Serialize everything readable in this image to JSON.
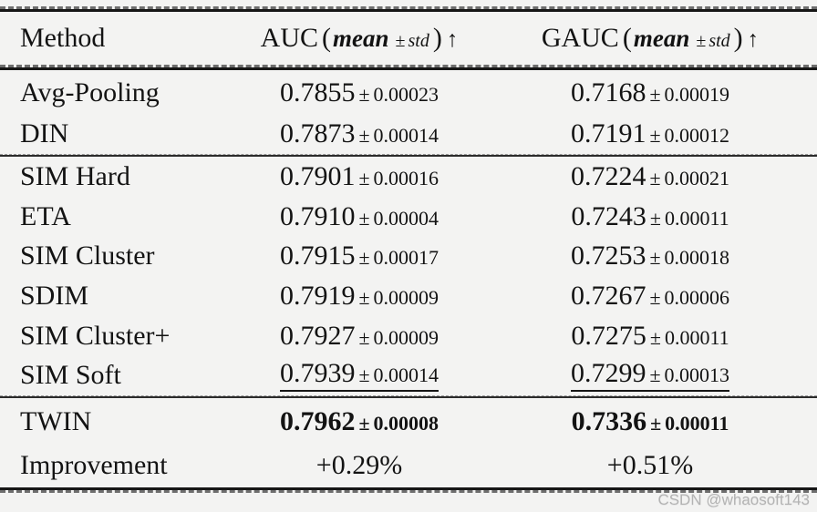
{
  "page": {
    "background": "#f3f3f2",
    "text_color": "#131313",
    "rule_solid_color": "#161616",
    "rule_dash_color": "#6e6e6e",
    "watermark": "CSDN @whaosoft143",
    "watermark_color": "#b3b3b3"
  },
  "table": {
    "pm": "±",
    "header": {
      "method_label": "Method",
      "auc": {
        "name": "AUC",
        "open": "(",
        "mean_word": "mean",
        "pm": "±",
        "std_word": "std",
        "close": ")",
        "arrow": "↑"
      },
      "gauc": {
        "name": "GAUC",
        "open": "(",
        "mean_word": "mean",
        "pm": "±",
        "std_word": "std",
        "close": ")",
        "arrow": "↑"
      }
    },
    "groups": [
      {
        "rows": [
          {
            "method": "Avg-Pooling",
            "auc": {
              "mean": "0.7855",
              "std": "0.00023"
            },
            "gauc": {
              "mean": "0.7168",
              "std": "0.00019"
            }
          },
          {
            "method": "DIN",
            "auc": {
              "mean": "0.7873",
              "std": "0.00014"
            },
            "gauc": {
              "mean": "0.7191",
              "std": "0.00012"
            }
          }
        ]
      },
      {
        "rows": [
          {
            "method": "SIM Hard",
            "auc": {
              "mean": "0.7901",
              "std": "0.00016"
            },
            "gauc": {
              "mean": "0.7224",
              "std": "0.00021"
            }
          },
          {
            "method": "ETA",
            "auc": {
              "mean": "0.7910",
              "std": "0.00004"
            },
            "gauc": {
              "mean": "0.7243",
              "std": "0.00011"
            }
          },
          {
            "method": "SIM Cluster",
            "auc": {
              "mean": "0.7915",
              "std": "0.00017"
            },
            "gauc": {
              "mean": "0.7253",
              "std": "0.00018"
            }
          },
          {
            "method": "SDIM",
            "auc": {
              "mean": "0.7919",
              "std": "0.00009"
            },
            "gauc": {
              "mean": "0.7267",
              "std": "0.00006"
            }
          },
          {
            "method": "SIM Cluster+",
            "auc": {
              "mean": "0.7927",
              "std": "0.00009"
            },
            "gauc": {
              "mean": "0.7275",
              "std": "0.00011"
            }
          },
          {
            "method": "SIM Soft",
            "style": "underline",
            "auc": {
              "mean": "0.7939",
              "std": "0.00014"
            },
            "gauc": {
              "mean": "0.7299",
              "std": "0.00013"
            }
          }
        ]
      },
      {
        "rows": [
          {
            "method": "TWIN",
            "style": "bold",
            "auc": {
              "mean": "0.7962",
              "std": "0.00008"
            },
            "gauc": {
              "mean": "0.7336",
              "std": "0.00011"
            }
          },
          {
            "method": "Improvement",
            "auc": "+0.29%",
            "gauc": "+0.51%"
          }
        ]
      }
    ]
  }
}
